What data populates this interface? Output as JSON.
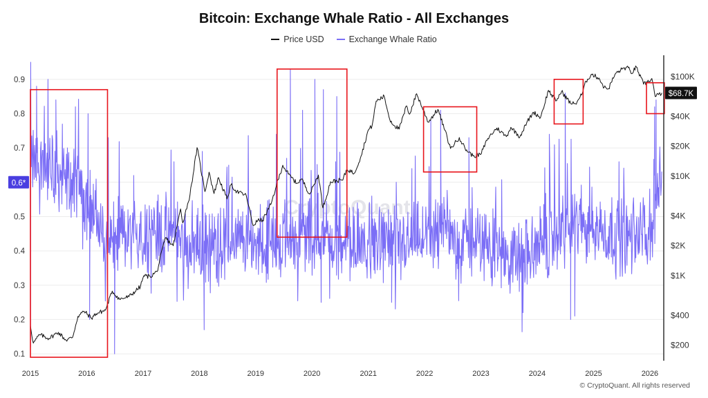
{
  "chart_data": {
    "type": "line",
    "title": "Bitcoin: Exchange Whale Ratio - All Exchanges",
    "xlabel": "",
    "ylabel_left": "",
    "ylabel_right": "",
    "x_range": [
      "2015-01-01",
      "2026-04-01"
    ],
    "x_ticks": [
      "2015",
      "2016",
      "2017",
      "2018",
      "2019",
      "2020",
      "2021",
      "2022",
      "2023",
      "2024",
      "2025",
      "2026"
    ],
    "y_left": {
      "ticks": [
        "0.1",
        "0.2",
        "0.3",
        "0.4",
        "0.5",
        "0.6",
        "0.7",
        "0.8",
        "0.9"
      ],
      "ylim": [
        0.08,
        0.95
      ]
    },
    "y_right": {
      "scale": "log",
      "ticks": [
        "$200",
        "$400",
        "$1K",
        "$2K",
        "$4K",
        "$10K",
        "$20K",
        "$40K",
        "$100K"
      ],
      "tick_values": [
        200,
        400,
        1000,
        2000,
        4000,
        10000,
        20000,
        40000,
        100000
      ],
      "ylim": [
        140,
        140000
      ]
    },
    "grid": true,
    "legend": "top-center",
    "series": [
      {
        "name": "Price USD",
        "axis": "right",
        "color": "#111111",
        "points": [
          [
            "2015-01-01",
            315
          ],
          [
            "2015-01-20",
            210
          ],
          [
            "2015-03-01",
            255
          ],
          [
            "2015-05-01",
            235
          ],
          [
            "2015-07-01",
            270
          ],
          [
            "2015-08-20",
            225
          ],
          [
            "2015-10-01",
            240
          ],
          [
            "2015-11-05",
            390
          ],
          [
            "2015-12-15",
            440
          ],
          [
            "2016-02-01",
            375
          ],
          [
            "2016-03-01",
            415
          ],
          [
            "2016-05-01",
            450
          ],
          [
            "2016-06-15",
            700
          ],
          [
            "2016-08-01",
            580
          ],
          [
            "2016-10-01",
            615
          ],
          [
            "2016-12-15",
            780
          ],
          [
            "2017-01-05",
            1000
          ],
          [
            "2017-02-15",
            980
          ],
          [
            "2017-04-01",
            1100
          ],
          [
            "2017-05-25",
            2400
          ],
          [
            "2017-07-15",
            2000
          ],
          [
            "2017-09-01",
            4700
          ],
          [
            "2017-09-15",
            3400
          ],
          [
            "2017-11-01",
            6500
          ],
          [
            "2017-12-17",
            19400
          ],
          [
            "2018-02-06",
            7000
          ],
          [
            "2018-03-05",
            11000
          ],
          [
            "2018-04-06",
            6700
          ],
          [
            "2018-05-05",
            9700
          ],
          [
            "2018-06-29",
            5900
          ],
          [
            "2018-07-25",
            8200
          ],
          [
            "2018-09-01",
            7000
          ],
          [
            "2018-11-01",
            6400
          ],
          [
            "2018-12-15",
            3200
          ],
          [
            "2019-01-15",
            3600
          ],
          [
            "2019-02-15",
            3600
          ],
          [
            "2019-04-10",
            5200
          ],
          [
            "2019-05-15",
            8000
          ],
          [
            "2019-06-26",
            12900
          ],
          [
            "2019-08-01",
            10500
          ],
          [
            "2019-09-24",
            8500
          ],
          [
            "2019-10-26",
            9400
          ],
          [
            "2019-12-18",
            6600
          ],
          [
            "2020-02-12",
            10300
          ],
          [
            "2020-03-12",
            4800
          ],
          [
            "2020-05-01",
            8800
          ],
          [
            "2020-07-20",
            9200
          ],
          [
            "2020-08-15",
            11800
          ],
          [
            "2020-10-01",
            10700
          ],
          [
            "2020-11-15",
            16000
          ],
          [
            "2020-12-31",
            29000
          ],
          [
            "2021-01-25",
            32000
          ],
          [
            "2021-02-21",
            57000
          ],
          [
            "2021-04-14",
            63500
          ],
          [
            "2021-05-20",
            37000
          ],
          [
            "2021-06-22",
            32000
          ],
          [
            "2021-07-20",
            29800
          ],
          [
            "2021-09-06",
            51000
          ],
          [
            "2021-09-25",
            42000
          ],
          [
            "2021-11-10",
            67500
          ],
          [
            "2022-01-24",
            35000
          ],
          [
            "2022-03-28",
            47000
          ],
          [
            "2022-05-12",
            29000
          ],
          [
            "2022-06-18",
            19000
          ],
          [
            "2022-08-14",
            24500
          ],
          [
            "2022-09-20",
            19000
          ],
          [
            "2022-11-10",
            16000
          ],
          [
            "2022-12-30",
            16500
          ],
          [
            "2023-02-15",
            24000
          ],
          [
            "2023-04-14",
            30500
          ],
          [
            "2023-06-15",
            25000
          ],
          [
            "2023-07-14",
            31000
          ],
          [
            "2023-09-11",
            25000
          ],
          [
            "2023-10-25",
            34500
          ],
          [
            "2023-12-08",
            44000
          ],
          [
            "2024-01-23",
            39000
          ],
          [
            "2024-03-14",
            73000
          ],
          [
            "2024-05-01",
            57000
          ],
          [
            "2024-06-07",
            71000
          ],
          [
            "2024-08-05",
            54000
          ],
          [
            "2024-09-06",
            53500
          ],
          [
            "2024-10-20",
            68000
          ],
          [
            "2024-11-13",
            90000
          ],
          [
            "2024-12-17",
            106000
          ],
          [
            "2025-02-05",
            97000
          ],
          [
            "2025-03-10",
            78000
          ],
          [
            "2025-04-08",
            76000
          ],
          [
            "2025-05-20",
            106000
          ],
          [
            "2025-07-14",
            122000
          ],
          [
            "2025-08-14",
            123000
          ],
          [
            "2025-09-01",
            108000
          ],
          [
            "2025-10-06",
            125000
          ],
          [
            "2025-10-20",
            110000
          ],
          [
            "2025-11-21",
            84000
          ],
          [
            "2025-12-15",
            88000
          ],
          [
            "2026-01-14",
            96000
          ],
          [
            "2026-02-05",
            63000
          ],
          [
            "2026-02-25",
            66000
          ],
          [
            "2026-03-20",
            68700
          ]
        ]
      },
      {
        "name": "Exchange Whale Ratio",
        "axis": "left",
        "color": "#7b6ef6",
        "baseline_points": [
          [
            "2015-01-01",
            0.66
          ],
          [
            "2015-06-01",
            0.64
          ],
          [
            "2015-11-01",
            0.58
          ],
          [
            "2016-02-01",
            0.53
          ],
          [
            "2016-05-01",
            0.43
          ],
          [
            "2016-10-01",
            0.45
          ],
          [
            "2017-03-01",
            0.46
          ],
          [
            "2017-09-01",
            0.44
          ],
          [
            "2018-03-01",
            0.41
          ],
          [
            "2018-09-01",
            0.43
          ],
          [
            "2019-03-01",
            0.42
          ],
          [
            "2019-09-01",
            0.45
          ],
          [
            "2020-03-01",
            0.45
          ],
          [
            "2020-09-01",
            0.42
          ],
          [
            "2021-03-01",
            0.4
          ],
          [
            "2021-09-01",
            0.42
          ],
          [
            "2022-03-01",
            0.45
          ],
          [
            "2022-09-01",
            0.43
          ],
          [
            "2023-03-01",
            0.42
          ],
          [
            "2023-09-01",
            0.37
          ],
          [
            "2024-03-01",
            0.42
          ],
          [
            "2024-09-01",
            0.49
          ],
          [
            "2025-03-01",
            0.46
          ],
          [
            "2025-09-01",
            0.44
          ],
          [
            "2026-01-01",
            0.45
          ],
          [
            "2026-03-20",
            0.62
          ]
        ],
        "spikes": [
          [
            "2015-01-03",
            0.95
          ],
          [
            "2015-02-10",
            0.88
          ],
          [
            "2015-06-15",
            0.84
          ],
          [
            "2015-10-20",
            0.82
          ],
          [
            "2016-01-10",
            0.8
          ],
          [
            "2016-05-20",
            0.73
          ],
          [
            "2016-11-01",
            0.62
          ],
          [
            "2017-07-20",
            0.66
          ],
          [
            "2018-01-20",
            0.69
          ],
          [
            "2018-07-10",
            0.65
          ],
          [
            "2019-05-15",
            0.74
          ],
          [
            "2019-08-14",
            0.93
          ],
          [
            "2019-11-01",
            0.81
          ],
          [
            "2020-01-20",
            0.9
          ],
          [
            "2020-03-15",
            0.87
          ],
          [
            "2020-06-10",
            0.85
          ],
          [
            "2021-10-10",
            0.64
          ],
          [
            "2022-02-10",
            0.78
          ],
          [
            "2022-04-15",
            0.81
          ],
          [
            "2022-10-15",
            0.73
          ],
          [
            "2024-03-20",
            0.74
          ],
          [
            "2024-07-01",
            0.86
          ],
          [
            "2025-06-15",
            0.66
          ],
          [
            "2026-02-01",
            0.82
          ],
          [
            "2026-02-10",
            0.84
          ]
        ],
        "dips": [
          [
            "2015-01-02",
            0.12
          ],
          [
            "2016-01-20",
            0.2
          ],
          [
            "2016-06-30",
            0.1
          ],
          [
            "2018-02-01",
            0.17
          ],
          [
            "2020-03-01",
            0.25
          ],
          [
            "2021-06-01",
            0.25
          ],
          [
            "2023-10-01",
            0.22
          ],
          [
            "2024-08-05",
            0.2
          ],
          [
            "2024-09-01",
            0.21
          ]
        ]
      }
    ],
    "current_value_badges": [
      {
        "axis": "left",
        "label": "0.6*",
        "value": 0.6
      },
      {
        "axis": "right",
        "label": "$68.7K",
        "value": 68700
      }
    ],
    "highlight_boxes": [
      {
        "x": [
          "2015-01-01",
          "2016-05-15"
        ],
        "y": [
          0.09,
          0.87
        ]
      },
      {
        "x": [
          "2019-05-20",
          "2020-08-15"
        ],
        "y": [
          0.44,
          0.93
        ]
      },
      {
        "x": [
          "2021-12-25",
          "2022-12-05"
        ],
        "y": [
          0.63,
          0.82
        ]
      },
      {
        "x": [
          "2024-04-20",
          "2024-10-25"
        ],
        "y": [
          0.77,
          0.9
        ]
      },
      {
        "x": [
          "2025-12-10",
          "2026-04-05"
        ],
        "y": [
          0.8,
          0.89
        ]
      }
    ]
  },
  "legend": {
    "items": [
      {
        "label": "Price USD",
        "color": "#111111"
      },
      {
        "label": "Exchange Whale Ratio",
        "color": "#7b6ef6"
      }
    ]
  },
  "footer": {
    "text": "© CryptoQuant. All rights reserved"
  }
}
